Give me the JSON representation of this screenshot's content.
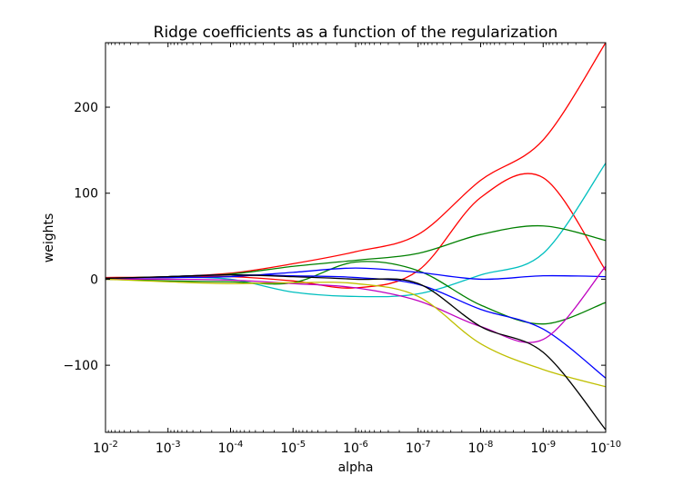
{
  "chart_data": {
    "type": "line",
    "title": "Ridge coefficients as a function of the regularization",
    "xlabel": "alpha",
    "ylabel": "weights",
    "xscale": "log",
    "x_axis_reversed": true,
    "xlim": [
      0.01,
      1e-10
    ],
    "ylim": [
      -178,
      275
    ],
    "xticks": [
      {
        "value": 0.01,
        "base": "10",
        "exp": "-2"
      },
      {
        "value": 0.001,
        "base": "10",
        "exp": "-3"
      },
      {
        "value": 0.0001,
        "base": "10",
        "exp": "-4"
      },
      {
        "value": 1e-05,
        "base": "10",
        "exp": "-5"
      },
      {
        "value": 1e-06,
        "base": "10",
        "exp": "-6"
      },
      {
        "value": 1e-07,
        "base": "10",
        "exp": "-7"
      },
      {
        "value": 1e-08,
        "base": "10",
        "exp": "-8"
      },
      {
        "value": 1e-09,
        "base": "10",
        "exp": "-9"
      },
      {
        "value": 1e-10,
        "base": "10",
        "exp": "-10"
      }
    ],
    "yticks": [
      {
        "value": 200,
        "label": "200"
      },
      {
        "value": 100,
        "label": "100"
      },
      {
        "value": 0,
        "label": "0"
      },
      {
        "value": -100,
        "label": "−100"
      }
    ],
    "grid": false,
    "legend": "none",
    "x": [
      0.01,
      0.001,
      0.0001,
      1e-05,
      1e-06,
      1e-07,
      1e-08,
      1e-09,
      1e-10
    ],
    "series": [
      {
        "color": "#ff0000",
        "values": [
          2,
          3,
          7,
          18,
          32,
          52,
          115,
          162,
          275
        ]
      },
      {
        "color": "#ff0000",
        "values": [
          1,
          2,
          3,
          -2,
          -10,
          10,
          95,
          118,
          10
        ]
      },
      {
        "color": "#00bfbf",
        "values": [
          1,
          2,
          0,
          -15,
          -20,
          -17,
          5,
          30,
          135
        ]
      },
      {
        "color": "#008000",
        "values": [
          1,
          3,
          6,
          15,
          22,
          30,
          52,
          62,
          45
        ]
      },
      {
        "color": "#008000",
        "values": [
          0,
          -2,
          -3,
          -4,
          20,
          10,
          -30,
          -52,
          -27
        ]
      },
      {
        "color": "#0000ff",
        "values": [
          1,
          2,
          3,
          8,
          13,
          8,
          0,
          4,
          3
        ]
      },
      {
        "color": "#0000ff",
        "values": [
          0,
          3,
          5,
          4,
          2,
          -6,
          -35,
          -58,
          -115
        ]
      },
      {
        "color": "#bf00bf",
        "values": [
          0,
          0,
          -1,
          -5,
          -10,
          -25,
          -55,
          -70,
          15
        ]
      },
      {
        "color": "#bfbf00",
        "values": [
          0,
          -3,
          -5,
          -4,
          -5,
          -20,
          -75,
          -105,
          -125
        ]
      },
      {
        "color": "#000000",
        "values": [
          1,
          3,
          5,
          3,
          0,
          -5,
          -55,
          -85,
          -175
        ]
      }
    ]
  }
}
